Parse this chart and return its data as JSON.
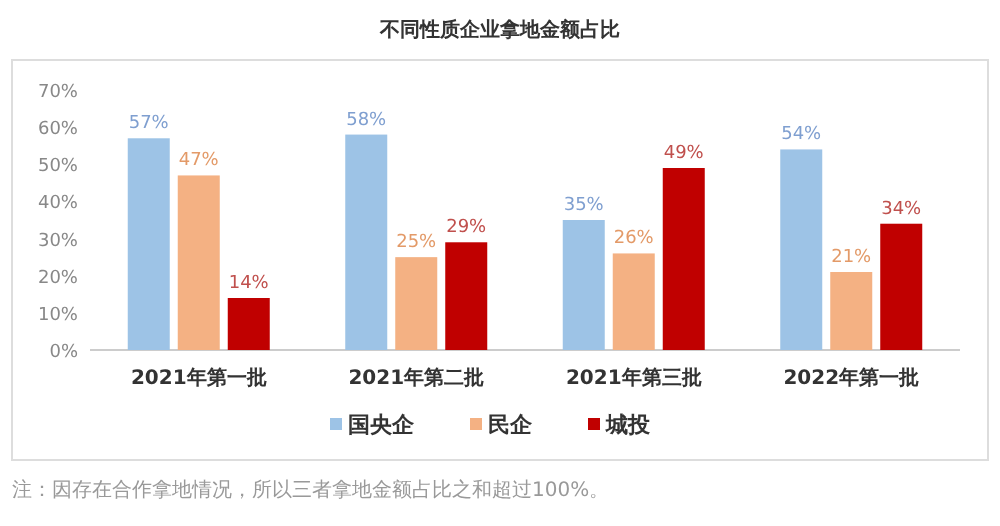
{
  "chart_data": {
    "type": "bar",
    "title": "不同性质企业拿地金额占比",
    "categories": [
      "2021年第一批",
      "2021年第二批",
      "2021年第三批",
      "2022年第一批"
    ],
    "series": [
      {
        "name": "国央企",
        "color": "#9dc3e6",
        "values": [
          57,
          58,
          35,
          54
        ],
        "value_labels": [
          "57%",
          "58%",
          "35%",
          "54%"
        ]
      },
      {
        "name": "民企",
        "color": "#f4b183",
        "values": [
          47,
          25,
          26,
          21
        ],
        "value_labels": [
          "47%",
          "25%",
          "26%",
          "21%"
        ]
      },
      {
        "name": "城投",
        "color": "#c00000",
        "values": [
          14,
          29,
          49,
          34
        ],
        "value_labels": [
          "14%",
          "29%",
          "49%",
          "34%"
        ]
      }
    ],
    "ylim": [
      0,
      70
    ],
    "yticks": [
      {
        "value": 0,
        "label": "0%"
      },
      {
        "value": 10,
        "label": "10%"
      },
      {
        "value": 20,
        "label": "20%"
      },
      {
        "value": 30,
        "label": "30%"
      },
      {
        "value": 40,
        "label": "40%"
      },
      {
        "value": 50,
        "label": "50%"
      },
      {
        "value": 60,
        "label": "60%"
      },
      {
        "value": 70,
        "label": "70%"
      }
    ],
    "legend": "bottom",
    "grid": false,
    "annotations": [
      "注：因存在合作拿地情况，所以三者拿地金额占比之和超过100%。"
    ]
  }
}
